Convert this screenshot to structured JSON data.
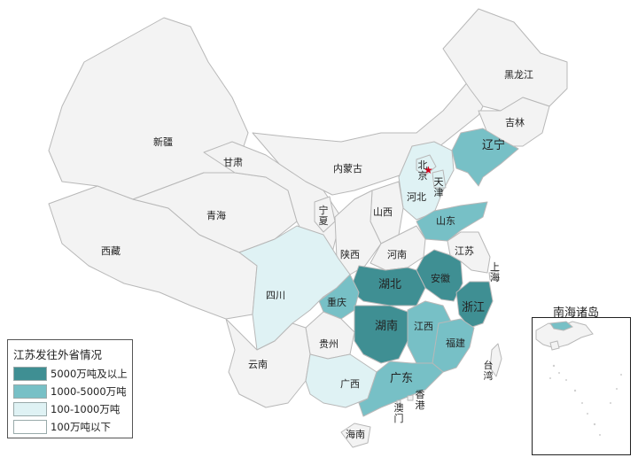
{
  "legend": {
    "title": "江苏发往外省情况",
    "items": [
      {
        "label": "5000万吨及以上",
        "color": "#3f8f93"
      },
      {
        "label": "1000-5000万吨",
        "color": "#77c0c6"
      },
      {
        "label": "100-1000万吨",
        "color": "#dff2f4"
      },
      {
        "label": "100万吨以下",
        "color": "#ffffff"
      }
    ]
  },
  "inset": {
    "title": "南海诸岛"
  },
  "colors": {
    "base": "#f3f3f3",
    "border": "#b8b8b8",
    "capital_star": "#d0021b"
  },
  "provinces": [
    {
      "id": "xinjiang",
      "name": "新疆",
      "level": 3
    },
    {
      "id": "xizang",
      "name": "西藏",
      "level": 3
    },
    {
      "id": "qinghai",
      "name": "青海",
      "level": 3
    },
    {
      "id": "gansu",
      "name": "甘肃",
      "level": 3
    },
    {
      "id": "neimenggu",
      "name": "内蒙古",
      "level": 3
    },
    {
      "id": "heilongjiang",
      "name": "黑龙江",
      "level": 3
    },
    {
      "id": "jilin",
      "name": "吉林",
      "level": 3
    },
    {
      "id": "liaoning",
      "name": "辽宁",
      "level": 1
    },
    {
      "id": "beijing",
      "name": "北京",
      "level": 2
    },
    {
      "id": "tianjin",
      "name": "天津",
      "level": 2
    },
    {
      "id": "hebei",
      "name": "河北",
      "level": 2
    },
    {
      "id": "shanxi",
      "name": "山西",
      "level": 3
    },
    {
      "id": "shandong",
      "name": "山东",
      "level": 1
    },
    {
      "id": "ningxia",
      "name": "宁夏",
      "level": 3
    },
    {
      "id": "shaanxi",
      "name": "陕西",
      "level": 3
    },
    {
      "id": "henan",
      "name": "河南",
      "level": 3
    },
    {
      "id": "jiangsu",
      "name": "江苏",
      "level": 3
    },
    {
      "id": "shanghai",
      "name": "上海",
      "level": 3
    },
    {
      "id": "anhui",
      "name": "安徽",
      "level": 0
    },
    {
      "id": "hubei",
      "name": "湖北",
      "level": 0
    },
    {
      "id": "zhejiang",
      "name": "浙江",
      "level": 0
    },
    {
      "id": "sichuan",
      "name": "四川",
      "level": 2
    },
    {
      "id": "chongqing",
      "name": "重庆",
      "level": 1
    },
    {
      "id": "hunan",
      "name": "湖南",
      "level": 0
    },
    {
      "id": "jiangxi",
      "name": "江西",
      "level": 1
    },
    {
      "id": "fujian",
      "name": "福建",
      "level": 1
    },
    {
      "id": "guizhou",
      "name": "贵州",
      "level": 3
    },
    {
      "id": "yunnan",
      "name": "云南",
      "level": 3
    },
    {
      "id": "guangxi",
      "name": "广西",
      "level": 2
    },
    {
      "id": "guangdong",
      "name": "广东",
      "level": 1
    },
    {
      "id": "xianggang",
      "name": "香港",
      "level": 3
    },
    {
      "id": "aomen",
      "name": "澳门",
      "level": 3
    },
    {
      "id": "hainan",
      "name": "海南",
      "level": 3
    },
    {
      "id": "taiwan",
      "name": "台湾",
      "level": 3
    }
  ]
}
